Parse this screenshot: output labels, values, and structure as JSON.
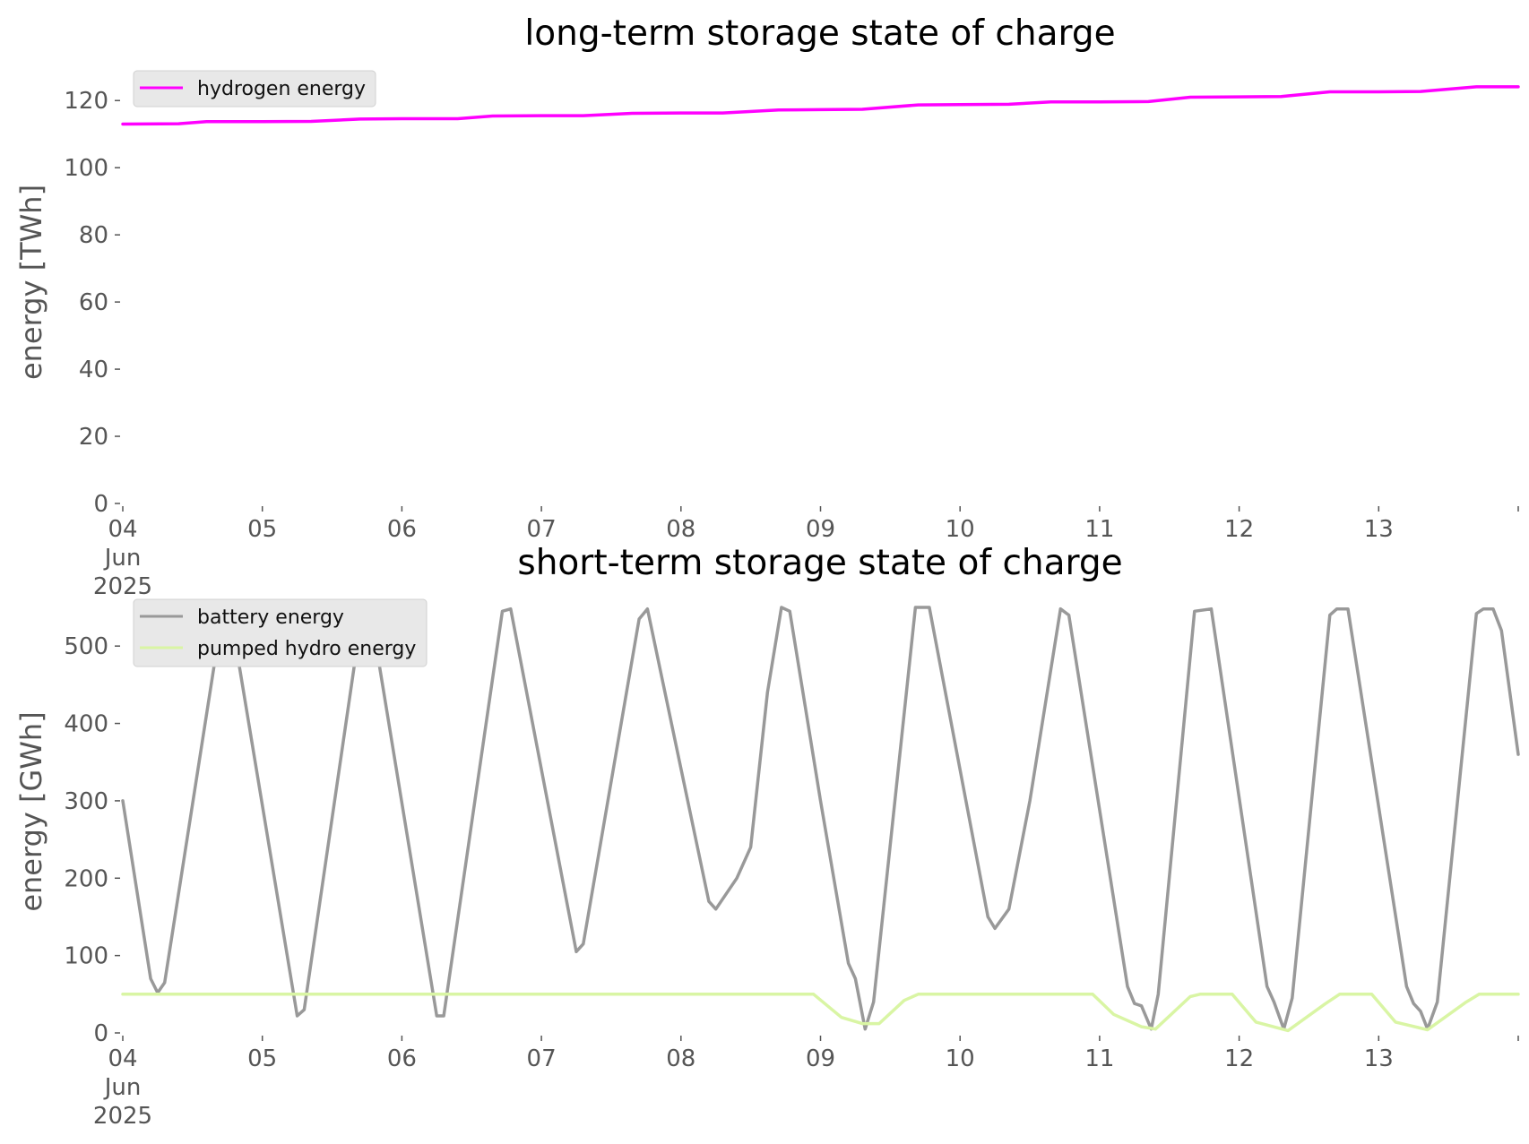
{
  "colors": {
    "hydrogen": "#ff00ff",
    "battery": "#999999",
    "pumped_hydro": "#d9f5a4",
    "tick": "#555555",
    "legend_bg": "#e8e8e8"
  },
  "chart_data": [
    {
      "type": "line",
      "title": "long-term storage state of charge",
      "xlabel": "",
      "ylabel": "energy [TWh]",
      "xlim": [
        "2025-06-04 00:00",
        "2025-06-14 00:00"
      ],
      "ylim": [
        0,
        127
      ],
      "yticks": [
        0,
        20,
        40,
        60,
        80,
        100,
        120
      ],
      "ytick_labels": [
        "0",
        "20",
        "40",
        "60",
        "80",
        "100",
        "120"
      ],
      "xtick_labels": [
        "04\nJun\n2025",
        "05",
        "06",
        "07",
        "08",
        "09",
        "10",
        "11",
        "12",
        "13"
      ],
      "grid": false,
      "legend_position": "upper-left",
      "series": [
        {
          "name": "hydrogen energy",
          "color": "#ff00ff",
          "points": [
            [
              0,
              113.0
            ],
            [
              0.4,
              113.1
            ],
            [
              0.6,
              113.7
            ],
            [
              1.0,
              113.7
            ],
            [
              1.35,
              113.8
            ],
            [
              1.7,
              114.5
            ],
            [
              2.0,
              114.6
            ],
            [
              2.4,
              114.6
            ],
            [
              2.65,
              115.4
            ],
            [
              3.0,
              115.5
            ],
            [
              3.3,
              115.5
            ],
            [
              3.65,
              116.2
            ],
            [
              4.0,
              116.3
            ],
            [
              4.3,
              116.3
            ],
            [
              4.7,
              117.2
            ],
            [
              5.0,
              117.3
            ],
            [
              5.3,
              117.4
            ],
            [
              5.7,
              118.7
            ],
            [
              6.0,
              118.8
            ],
            [
              6.35,
              118.9
            ],
            [
              6.65,
              119.6
            ],
            [
              7.0,
              119.6
            ],
            [
              7.35,
              119.7
            ],
            [
              7.65,
              121.0
            ],
            [
              8.0,
              121.1
            ],
            [
              8.3,
              121.2
            ],
            [
              8.65,
              122.6
            ],
            [
              9.0,
              122.6
            ],
            [
              9.3,
              122.7
            ],
            [
              9.7,
              124.1
            ],
            [
              10.0,
              124.1
            ]
          ]
        }
      ]
    },
    {
      "type": "line",
      "title": "short-term storage state of charge",
      "xlabel": "",
      "ylabel": "energy [GWh]",
      "xlim": [
        "2025-06-04 00:00",
        "2025-06-14 00:00"
      ],
      "ylim": [
        0,
        550
      ],
      "yticks": [
        0,
        100,
        200,
        300,
        400,
        500
      ],
      "ytick_labels": [
        "0",
        "100",
        "200",
        "300",
        "400",
        "500"
      ],
      "xtick_labels": [
        "04\nJun\n2025",
        "05",
        "06",
        "07",
        "08",
        "09",
        "10",
        "11",
        "12",
        "13"
      ],
      "grid": false,
      "legend_position": "upper-left",
      "series": [
        {
          "name": "battery energy",
          "color": "#999999",
          "points": [
            [
              0,
              300
            ],
            [
              0.2,
              70
            ],
            [
              0.25,
              52
            ],
            [
              0.3,
              65
            ],
            [
              0.72,
              550
            ],
            [
              0.77,
              545
            ],
            [
              1.25,
              22
            ],
            [
              1.3,
              30
            ],
            [
              1.72,
              550
            ],
            [
              1.78,
              540
            ],
            [
              2.25,
              22
            ],
            [
              2.3,
              22
            ],
            [
              2.72,
              545
            ],
            [
              2.78,
              548
            ],
            [
              3.25,
              105
            ],
            [
              3.3,
              115
            ],
            [
              3.7,
              535
            ],
            [
              3.76,
              548
            ],
            [
              4.2,
              170
            ],
            [
              4.25,
              160
            ],
            [
              4.4,
              200
            ],
            [
              4.5,
              240
            ],
            [
              4.62,
              440
            ],
            [
              4.72,
              550
            ],
            [
              4.78,
              545
            ],
            [
              5.0,
              300
            ],
            [
              5.2,
              90
            ],
            [
              5.25,
              70
            ],
            [
              5.32,
              5
            ],
            [
              5.38,
              40
            ],
            [
              5.68,
              550
            ],
            [
              5.78,
              550
            ],
            [
              6.2,
              150
            ],
            [
              6.25,
              135
            ],
            [
              6.35,
              160
            ],
            [
              6.5,
              300
            ],
            [
              6.72,
              548
            ],
            [
              6.78,
              540
            ],
            [
              7.2,
              60
            ],
            [
              7.25,
              38
            ],
            [
              7.3,
              35
            ],
            [
              7.37,
              5
            ],
            [
              7.42,
              50
            ],
            [
              7.68,
              545
            ],
            [
              7.8,
              548
            ],
            [
              8.2,
              60
            ],
            [
              8.25,
              40
            ],
            [
              8.32,
              5
            ],
            [
              8.38,
              45
            ],
            [
              8.65,
              540
            ],
            [
              8.7,
              548
            ],
            [
              8.78,
              548
            ],
            [
              9.2,
              60
            ],
            [
              9.25,
              38
            ],
            [
              9.3,
              28
            ],
            [
              9.35,
              5
            ],
            [
              9.42,
              40
            ],
            [
              9.7,
              542
            ],
            [
              9.75,
              548
            ],
            [
              9.82,
              548
            ],
            [
              9.88,
              520
            ],
            [
              10.0,
              360
            ]
          ]
        },
        {
          "name": "pumped hydro energy",
          "color": "#d9f5a4",
          "points": [
            [
              0,
              50
            ],
            [
              4.95,
              50
            ],
            [
              5.15,
              20
            ],
            [
              5.3,
              12
            ],
            [
              5.42,
              12
            ],
            [
              5.6,
              42
            ],
            [
              5.7,
              50
            ],
            [
              6.95,
              50
            ],
            [
              7.1,
              24
            ],
            [
              7.3,
              8
            ],
            [
              7.4,
              5
            ],
            [
              7.65,
              47
            ],
            [
              7.72,
              50
            ],
            [
              7.95,
              50
            ],
            [
              8.12,
              14
            ],
            [
              8.35,
              3
            ],
            [
              8.62,
              38
            ],
            [
              8.72,
              50
            ],
            [
              8.95,
              50
            ],
            [
              9.12,
              14
            ],
            [
              9.35,
              4
            ],
            [
              9.62,
              39
            ],
            [
              9.72,
              50
            ],
            [
              10.0,
              50
            ]
          ]
        }
      ]
    }
  ]
}
